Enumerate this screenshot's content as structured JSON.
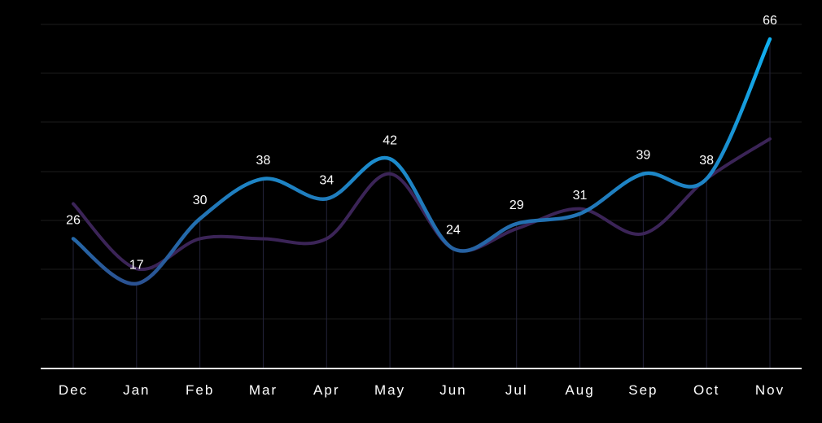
{
  "chart_data": {
    "type": "line",
    "categories": [
      "Dec",
      "Jan",
      "Feb",
      "Mar",
      "Apr",
      "May",
      "Jun",
      "Jul",
      "Aug",
      "Sep",
      "Oct",
      "Nov"
    ],
    "series": [
      {
        "values": [
          26,
          17,
          30,
          38,
          34,
          42,
          24,
          29,
          31,
          39,
          38,
          66
        ],
        "color": "#0ea5e9",
        "labeled": true
      },
      {
        "values": [
          33,
          20,
          26,
          26,
          26,
          39,
          24,
          28,
          32,
          27,
          38,
          46
        ],
        "color": "#3b2457",
        "labeled": false
      }
    ],
    "ylim": [
      0,
      66
    ],
    "grid": true,
    "legend": "none",
    "xlabel": "",
    "ylabel": ""
  }
}
